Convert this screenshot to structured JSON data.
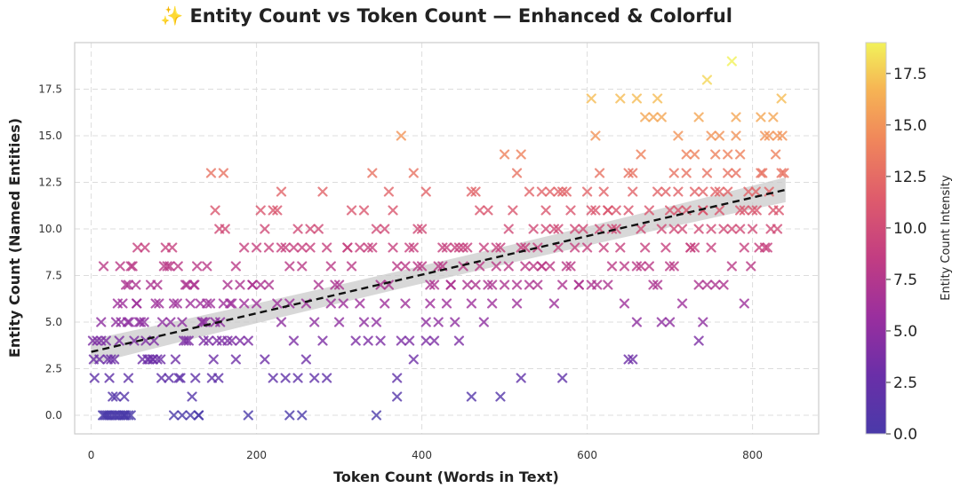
{
  "chart_data": {
    "type": "scatter",
    "title": "✨ Entity Count vs Token Count — Enhanced & Colorful",
    "xlabel": "Token Count (Words in Text)",
    "ylabel": "Entity Count (Named Entities)",
    "xlim": [
      -20,
      880
    ],
    "ylim": [
      -1,
      20
    ],
    "xticks": [
      0,
      200,
      400,
      600,
      800
    ],
    "yticks": [
      0.0,
      2.5,
      5.0,
      7.5,
      10.0,
      12.5,
      15.0,
      17.5
    ],
    "xtick_labels": [
      "0",
      "200",
      "400",
      "600",
      "800"
    ],
    "ytick_labels": [
      "0.0",
      "2.5",
      "5.0",
      "7.5",
      "10.0",
      "12.5",
      "15.0",
      "17.5"
    ],
    "grid": true,
    "marker": "x",
    "colormap": "plasma",
    "colorbar": {
      "label": "Entity Count Intensity",
      "range": [
        0,
        19
      ],
      "ticks": [
        0.0,
        2.5,
        5.0,
        7.5,
        10.0,
        12.5,
        15.0,
        17.5
      ],
      "tick_labels": [
        "0.0",
        "2.5",
        "5.0",
        "7.5",
        "10.0",
        "12.5",
        "15.0",
        "17.5"
      ]
    },
    "trendline": {
      "type": "linear",
      "x_range": [
        0,
        840
      ],
      "y_range": [
        3.4,
        12.1
      ],
      "style": "dashed",
      "color": "#111111",
      "confidence_band": true,
      "band_color": "#c8c8c8"
    },
    "points": [
      [
        2,
        4
      ],
      [
        3,
        3
      ],
      [
        4,
        2
      ],
      [
        7,
        4
      ],
      [
        10,
        3
      ],
      [
        12,
        4
      ],
      [
        14,
        0
      ],
      [
        16,
        0
      ],
      [
        18,
        0
      ],
      [
        20,
        0
      ],
      [
        22,
        0
      ],
      [
        25,
        0
      ],
      [
        28,
        0
      ],
      [
        30,
        0
      ],
      [
        33,
        0
      ],
      [
        35,
        0
      ],
      [
        38,
        0
      ],
      [
        40,
        0
      ],
      [
        42,
        0
      ],
      [
        45,
        0
      ],
      [
        48,
        0
      ],
      [
        12,
        5
      ],
      [
        15,
        8
      ],
      [
        18,
        4
      ],
      [
        20,
        3
      ],
      [
        22,
        2
      ],
      [
        24,
        3
      ],
      [
        26,
        1
      ],
      [
        28,
        3
      ],
      [
        30,
        5
      ],
      [
        32,
        6
      ],
      [
        34,
        4
      ],
      [
        35,
        8
      ],
      [
        36,
        5
      ],
      [
        38,
        6
      ],
      [
        40,
        1
      ],
      [
        42,
        7
      ],
      [
        44,
        5
      ],
      [
        45,
        7
      ],
      [
        46,
        5
      ],
      [
        48,
        8
      ],
      [
        50,
        8
      ],
      [
        52,
        4
      ],
      [
        54,
        7
      ],
      [
        55,
        6
      ],
      [
        56,
        9
      ],
      [
        58,
        5
      ],
      [
        60,
        5
      ],
      [
        62,
        3
      ],
      [
        64,
        5
      ],
      [
        66,
        4
      ],
      [
        68,
        3
      ],
      [
        70,
        3
      ],
      [
        72,
        7
      ],
      [
        74,
        3
      ],
      [
        76,
        4
      ],
      [
        78,
        6
      ],
      [
        80,
        3
      ],
      [
        82,
        6
      ],
      [
        84,
        3
      ],
      [
        86,
        5
      ],
      [
        88,
        8
      ],
      [
        90,
        9
      ],
      [
        92,
        8
      ],
      [
        94,
        2
      ],
      [
        96,
        5
      ],
      [
        98,
        9
      ],
      [
        100,
        6
      ],
      [
        102,
        3
      ],
      [
        104,
        6
      ],
      [
        106,
        2
      ],
      [
        108,
        2
      ],
      [
        110,
        5
      ],
      [
        112,
        4
      ],
      [
        114,
        7
      ],
      [
        116,
        7
      ],
      [
        118,
        4
      ],
      [
        120,
        6
      ],
      [
        122,
        1
      ],
      [
        124,
        7
      ],
      [
        126,
        2
      ],
      [
        128,
        8
      ],
      [
        130,
        0
      ],
      [
        132,
        6
      ],
      [
        134,
        5
      ],
      [
        136,
        4
      ],
      [
        138,
        5
      ],
      [
        140,
        8
      ],
      [
        142,
        4
      ],
      [
        144,
        6
      ],
      [
        146,
        2
      ],
      [
        148,
        3
      ],
      [
        150,
        5
      ],
      [
        152,
        4
      ],
      [
        154,
        2
      ],
      [
        156,
        5
      ],
      [
        158,
        4
      ],
      [
        160,
        6
      ],
      [
        162,
        10
      ],
      [
        165,
        4
      ],
      [
        168,
        6
      ],
      [
        170,
        4
      ],
      [
        175,
        3
      ],
      [
        180,
        4
      ],
      [
        185,
        6
      ],
      [
        190,
        4
      ],
      [
        195,
        7
      ],
      [
        200,
        6
      ],
      [
        205,
        7
      ],
      [
        210,
        3
      ],
      [
        215,
        7
      ],
      [
        220,
        2
      ],
      [
        225,
        6
      ],
      [
        230,
        5
      ],
      [
        235,
        9
      ],
      [
        240,
        6
      ],
      [
        245,
        4
      ],
      [
        250,
        2
      ],
      [
        255,
        8
      ],
      [
        260,
        6
      ],
      [
        265,
        9
      ],
      [
        270,
        5
      ],
      [
        275,
        7
      ],
      [
        280,
        4
      ],
      [
        285,
        2
      ],
      [
        290,
        6
      ],
      [
        295,
        7
      ],
      [
        300,
        5
      ],
      [
        305,
        6
      ],
      [
        310,
        9
      ],
      [
        315,
        8
      ],
      [
        320,
        4
      ],
      [
        325,
        6
      ],
      [
        330,
        5
      ],
      [
        335,
        4
      ],
      [
        340,
        9
      ],
      [
        345,
        5
      ],
      [
        350,
        7
      ],
      [
        355,
        6
      ],
      [
        360,
        7
      ],
      [
        365,
        9
      ],
      [
        370,
        8
      ],
      [
        375,
        4
      ],
      [
        380,
        6
      ],
      [
        385,
        9
      ],
      [
        390,
        3
      ],
      [
        395,
        8
      ],
      [
        400,
        10
      ],
      [
        405,
        5
      ],
      [
        410,
        7
      ],
      [
        415,
        4
      ],
      [
        420,
        8
      ],
      [
        425,
        9
      ],
      [
        430,
        6
      ],
      [
        435,
        7
      ],
      [
        440,
        9
      ],
      [
        445,
        4
      ],
      [
        450,
        8
      ],
      [
        455,
        9
      ],
      [
        460,
        6
      ],
      [
        465,
        7
      ],
      [
        470,
        11
      ],
      [
        475,
        9
      ],
      [
        480,
        7
      ],
      [
        485,
        6
      ],
      [
        490,
        8
      ],
      [
        495,
        9
      ],
      [
        500,
        7
      ],
      [
        505,
        8
      ],
      [
        510,
        11
      ],
      [
        515,
        6
      ],
      [
        520,
        9
      ],
      [
        525,
        8
      ],
      [
        530,
        7
      ],
      [
        535,
        10
      ],
      [
        540,
        9
      ],
      [
        545,
        8
      ],
      [
        550,
        11
      ],
      [
        555,
        12
      ],
      [
        560,
        6
      ],
      [
        565,
        10
      ],
      [
        570,
        7
      ],
      [
        575,
        12
      ],
      [
        580,
        11
      ],
      [
        585,
        9
      ],
      [
        590,
        7
      ],
      [
        595,
        10
      ],
      [
        600,
        9
      ],
      [
        605,
        7
      ],
      [
        610,
        11
      ],
      [
        615,
        13
      ],
      [
        620,
        9
      ],
      [
        625,
        11
      ],
      [
        630,
        8
      ],
      [
        635,
        10
      ],
      [
        640,
        9
      ],
      [
        645,
        6
      ],
      [
        650,
        11
      ],
      [
        655,
        12
      ],
      [
        660,
        8
      ],
      [
        665,
        10
      ],
      [
        670,
        9
      ],
      [
        675,
        11
      ],
      [
        680,
        7
      ],
      [
        685,
        12
      ],
      [
        690,
        10
      ],
      [
        695,
        9
      ],
      [
        700,
        11
      ],
      [
        705,
        8
      ],
      [
        710,
        12
      ],
      [
        715,
        10
      ],
      [
        720,
        11
      ],
      [
        725,
        9
      ],
      [
        730,
        12
      ],
      [
        735,
        10
      ],
      [
        740,
        11
      ],
      [
        745,
        13
      ],
      [
        750,
        9
      ],
      [
        755,
        12
      ],
      [
        760,
        11
      ],
      [
        765,
        10
      ],
      [
        770,
        12
      ],
      [
        775,
        8
      ],
      [
        780,
        13
      ],
      [
        785,
        11
      ],
      [
        790,
        9
      ],
      [
        795,
        12
      ],
      [
        800,
        10
      ],
      [
        805,
        11
      ],
      [
        810,
        13
      ],
      [
        815,
        9
      ],
      [
        820,
        12
      ],
      [
        825,
        11
      ],
      [
        830,
        10
      ],
      [
        835,
        13
      ],
      [
        40,
        0
      ],
      [
        100,
        0
      ],
      [
        110,
        0
      ],
      [
        120,
        0
      ],
      [
        130,
        0
      ],
      [
        190,
        0
      ],
      [
        240,
        0
      ],
      [
        255,
        0
      ],
      [
        345,
        0
      ],
      [
        30,
        1
      ],
      [
        370,
        1
      ],
      [
        460,
        1
      ],
      [
        495,
        1
      ],
      [
        45,
        2
      ],
      [
        235,
        2
      ],
      [
        270,
        2
      ],
      [
        370,
        2
      ],
      [
        570,
        2
      ],
      [
        650,
        3
      ],
      [
        655,
        3
      ],
      [
        350,
        4
      ],
      [
        385,
        4
      ],
      [
        735,
        4
      ],
      [
        260,
        3
      ],
      [
        520,
        2
      ],
      [
        475,
        5
      ],
      [
        740,
        5
      ],
      [
        700,
        5
      ],
      [
        660,
        5
      ],
      [
        405,
        4
      ],
      [
        145,
        13
      ],
      [
        160,
        13
      ],
      [
        230,
        12
      ],
      [
        280,
        12
      ],
      [
        340,
        13
      ],
      [
        375,
        15
      ],
      [
        390,
        13
      ],
      [
        405,
        12
      ],
      [
        480,
        11
      ],
      [
        515,
        13
      ],
      [
        500,
        14
      ],
      [
        520,
        14
      ],
      [
        545,
        12
      ],
      [
        565,
        12
      ],
      [
        570,
        12
      ],
      [
        600,
        12
      ],
      [
        605,
        17
      ],
      [
        610,
        15
      ],
      [
        620,
        12
      ],
      [
        625,
        11
      ],
      [
        640,
        17
      ],
      [
        650,
        13
      ],
      [
        655,
        13
      ],
      [
        660,
        17
      ],
      [
        665,
        14
      ],
      [
        670,
        16
      ],
      [
        680,
        16
      ],
      [
        685,
        17
      ],
      [
        690,
        16
      ],
      [
        695,
        12
      ],
      [
        705,
        13
      ],
      [
        710,
        15
      ],
      [
        720,
        13
      ],
      [
        730,
        14
      ],
      [
        735,
        16
      ],
      [
        740,
        11
      ],
      [
        745,
        18
      ],
      [
        750,
        15
      ],
      [
        755,
        14
      ],
      [
        760,
        12
      ],
      [
        770,
        14
      ],
      [
        775,
        19
      ],
      [
        780,
        16
      ],
      [
        785,
        14
      ],
      [
        790,
        11
      ],
      [
        800,
        11
      ],
      [
        810,
        16
      ],
      [
        815,
        15
      ],
      [
        820,
        15
      ],
      [
        825,
        16
      ],
      [
        830,
        15
      ],
      [
        835,
        17
      ],
      [
        838,
        13
      ],
      [
        836,
        15
      ],
      [
        832,
        11
      ],
      [
        828,
        14
      ],
      [
        822,
        10
      ],
      [
        818,
        9
      ],
      [
        812,
        13
      ],
      [
        808,
        9
      ],
      [
        804,
        12
      ],
      [
        798,
        8
      ],
      [
        790,
        6
      ],
      [
        785,
        10
      ],
      [
        780,
        15
      ],
      [
        775,
        10
      ],
      [
        770,
        13
      ],
      [
        765,
        7
      ],
      [
        760,
        15
      ],
      [
        755,
        7
      ],
      [
        750,
        10
      ],
      [
        745,
        7
      ],
      [
        740,
        12
      ],
      [
        735,
        7
      ],
      [
        730,
        9
      ],
      [
        725,
        9
      ],
      [
        720,
        14
      ],
      [
        715,
        6
      ],
      [
        710,
        11
      ],
      [
        705,
        10
      ],
      [
        700,
        8
      ],
      [
        690,
        5
      ],
      [
        685,
        7
      ],
      [
        675,
        8
      ],
      [
        665,
        8
      ],
      [
        645,
        8
      ],
      [
        635,
        11
      ],
      [
        630,
        10
      ],
      [
        625,
        7
      ],
      [
        615,
        10
      ],
      [
        612,
        7
      ],
      [
        605,
        11
      ],
      [
        590,
        7
      ],
      [
        585,
        10
      ],
      [
        580,
        8
      ],
      [
        575,
        8
      ],
      [
        565,
        9
      ],
      [
        560,
        10
      ],
      [
        555,
        8
      ],
      [
        550,
        10
      ],
      [
        545,
        8
      ],
      [
        540,
        7
      ],
      [
        535,
        8
      ],
      [
        530,
        12
      ],
      [
        525,
        9
      ],
      [
        515,
        7
      ],
      [
        505,
        10
      ],
      [
        490,
        9
      ],
      [
        485,
        7
      ],
      [
        470,
        8
      ],
      [
        465,
        12
      ],
      [
        460,
        12
      ],
      [
        455,
        7
      ],
      [
        450,
        9
      ],
      [
        445,
        9
      ],
      [
        440,
        5
      ],
      [
        435,
        7
      ],
      [
        430,
        9
      ],
      [
        425,
        8
      ],
      [
        420,
        5
      ],
      [
        415,
        7
      ],
      [
        410,
        6
      ],
      [
        400,
        8
      ],
      [
        395,
        10
      ],
      [
        390,
        9
      ],
      [
        380,
        8
      ],
      [
        365,
        11
      ],
      [
        360,
        12
      ],
      [
        355,
        10
      ],
      [
        345,
        10
      ],
      [
        335,
        9
      ],
      [
        330,
        11
      ],
      [
        325,
        9
      ],
      [
        315,
        11
      ],
      [
        310,
        9
      ],
      [
        300,
        7
      ],
      [
        290,
        8
      ],
      [
        285,
        9
      ],
      [
        275,
        10
      ],
      [
        265,
        10
      ],
      [
        255,
        9
      ],
      [
        250,
        10
      ],
      [
        245,
        9
      ],
      [
        240,
        8
      ],
      [
        230,
        9
      ],
      [
        225,
        11
      ],
      [
        220,
        11
      ],
      [
        215,
        9
      ],
      [
        210,
        10
      ],
      [
        205,
        11
      ],
      [
        200,
        9
      ],
      [
        195,
        7
      ],
      [
        185,
        9
      ],
      [
        180,
        7
      ],
      [
        175,
        8
      ],
      [
        170,
        6
      ],
      [
        165,
        7
      ],
      [
        155,
        10
      ],
      [
        150,
        11
      ],
      [
        140,
        6
      ],
      [
        135,
        5
      ],
      [
        125,
        7
      ],
      [
        115,
        4
      ],
      [
        105,
        8
      ],
      [
        95,
        8
      ],
      [
        85,
        2
      ],
      [
        80,
        7
      ],
      [
        75,
        3
      ],
      [
        65,
        9
      ],
      [
        55,
        6
      ]
    ]
  }
}
